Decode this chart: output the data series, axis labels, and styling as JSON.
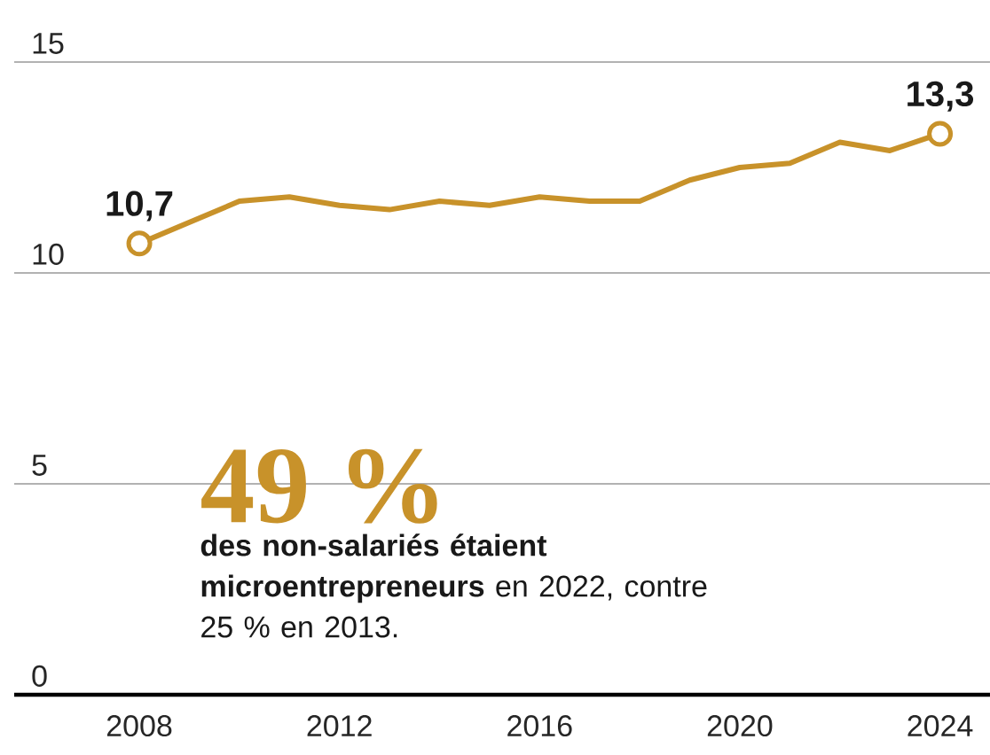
{
  "chart_data": {
    "type": "line",
    "x": [
      2008,
      2010,
      2011,
      2012,
      2013,
      2014,
      2015,
      2016,
      2017,
      2018,
      2019,
      2020,
      2021,
      2022,
      2023,
      2024
    ],
    "series": [
      {
        "color": "#c8922a",
        "values": [
          10.7,
          11.7,
          11.8,
          11.6,
          11.5,
          11.7,
          11.6,
          11.8,
          11.7,
          11.7,
          12.2,
          12.5,
          12.6,
          13.1,
          12.9,
          13.3
        ],
        "value_labels": [
          "10,7",
          null,
          null,
          null,
          null,
          null,
          null,
          null,
          null,
          null,
          null,
          null,
          null,
          null,
          null,
          "13,3"
        ]
      }
    ],
    "xlim": [
      2005.5,
      2025
    ],
    "xticks": [
      2008,
      2012,
      2016,
      2020,
      2024
    ],
    "ylim": [
      0,
      15
    ],
    "yticks": [
      0,
      5,
      10,
      15
    ],
    "grid": "y",
    "annotations": [
      "49 %",
      "**des non-salariés étaient microentrepreneurs** en 2022, contre 25 % en 2013."
    ]
  }
}
